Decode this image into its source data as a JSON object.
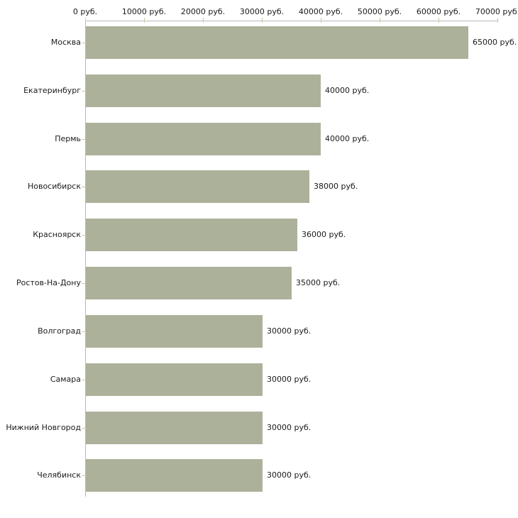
{
  "page": {
    "background": "#ffffff"
  },
  "chart_data": {
    "type": "bar",
    "orientation": "horizontal",
    "title": "",
    "xlabel": "",
    "ylabel": "",
    "xlim": [
      0,
      70000
    ],
    "x_ticks": [
      0,
      10000,
      20000,
      30000,
      40000,
      50000,
      60000,
      70000
    ],
    "x_tick_labels": [
      "0 руб.",
      "10000 руб.",
      "20000 руб.",
      "30000 руб.",
      "40000 руб.",
      "50000 руб.",
      "60000 руб.",
      "70000 руб."
    ],
    "categories": [
      "Москва",
      "Екатеринбург",
      "Пермь",
      "Новосибирск",
      "Красноярск",
      "Ростов-На-Дону",
      "Волгоград",
      "Самара",
      "Нижний Новгород",
      "Челябинск"
    ],
    "values": [
      65000,
      40000,
      40000,
      38000,
      36000,
      35000,
      30000,
      30000,
      30000,
      30000
    ],
    "bar_labels": [
      "65000 руб.",
      "40000 руб.",
      "40000 руб.",
      "38000 руб.",
      "36000 руб.",
      "35000 руб.",
      "30000 руб.",
      "30000 руб.",
      "30000 руб.",
      "30000 руб."
    ],
    "grid": false,
    "legend": null,
    "tick_label_position": "top",
    "colors": {
      "bar": "#acb29a",
      "axis_line": "#b9b9b9",
      "tick_mark": "#cbc9a3",
      "text": "#1a1a1a",
      "background": "#ffffff"
    }
  }
}
